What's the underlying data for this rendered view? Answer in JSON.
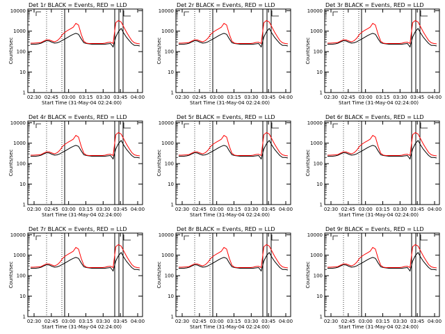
{
  "chart_data": [
    {
      "type": "line",
      "title": "Det 1r  BLACK = Events, RED = LLD",
      "xlabel": "Start Time (31-May-04 02:24:00)",
      "ylabel": "Counts/sec",
      "yscale": "log",
      "ylim": [
        1,
        12000
      ],
      "ytick_labels": [
        "1",
        "10",
        "100",
        "1000",
        "10000"
      ],
      "xtick_labels": [
        "02:30",
        "02:45",
        "03:00",
        "03:15",
        "03:30",
        "03:45",
        "04:00"
      ],
      "series": [
        {
          "name": "Events",
          "color": "#000000",
          "values": [
            230,
            230,
            230,
            240,
            260,
            300,
            340,
            330,
            290,
            260,
            270,
            300,
            360,
            420,
            500,
            600,
            700,
            780,
            700,
            420,
            270,
            250,
            240,
            230,
            230,
            230,
            230,
            230,
            230,
            240,
            250,
            170,
            520,
            960,
            1350,
            800,
            500,
            350,
            250,
            200,
            200,
            190
          ]
        },
        {
          "name": "LLD",
          "color": "#ff0000",
          "values": [
            260,
            260,
            265,
            270,
            280,
            330,
            380,
            370,
            330,
            300,
            340,
            450,
            700,
            900,
            1100,
            1300,
            1550,
            2400,
            2000,
            700,
            320,
            260,
            250,
            250,
            250,
            250,
            250,
            250,
            260,
            280,
            290,
            250,
            2600,
            3300,
            2800,
            1600,
            900,
            550,
            350,
            270,
            250,
            240
          ]
        }
      ]
    },
    {
      "type": "line",
      "title": "Det 2r  BLACK = Events, RED = LLD",
      "xlabel": "Start Time (31-May-04 02:24:00)",
      "ylabel": "Counts/sec",
      "yscale": "log",
      "ylim": [
        1,
        12000
      ],
      "ytick_labels": [
        "1",
        "10",
        "100",
        "1000",
        "10000"
      ],
      "xtick_labels": [
        "02:30",
        "02:45",
        "03:00",
        "03:15",
        "03:30",
        "03:45",
        "04:00"
      ],
      "series": [
        {
          "name": "Events",
          "color": "#000000",
          "values": [
            230,
            230,
            230,
            240,
            260,
            300,
            340,
            330,
            290,
            260,
            270,
            300,
            360,
            420,
            500,
            600,
            700,
            780,
            700,
            420,
            270,
            250,
            240,
            230,
            230,
            230,
            230,
            230,
            230,
            240,
            250,
            170,
            520,
            960,
            1350,
            800,
            500,
            350,
            250,
            200,
            200,
            190
          ]
        },
        {
          "name": "LLD",
          "color": "#ff0000",
          "values": [
            260,
            260,
            265,
            270,
            280,
            330,
            380,
            370,
            330,
            300,
            340,
            450,
            700,
            900,
            1100,
            1300,
            1550,
            2400,
            2000,
            700,
            320,
            260,
            250,
            250,
            250,
            250,
            250,
            250,
            260,
            280,
            290,
            250,
            2600,
            3300,
            2800,
            1600,
            900,
            550,
            350,
            270,
            250,
            240
          ]
        }
      ]
    },
    {
      "type": "line",
      "title": "Det 3r  BLACK = Events, RED = LLD",
      "xlabel": "Start Time (31-May-04 02:24:00)",
      "ylabel": "Counts/sec",
      "yscale": "log",
      "ylim": [
        1,
        12000
      ],
      "ytick_labels": [
        "1",
        "10",
        "100",
        "1000",
        "10000"
      ],
      "xtick_labels": [
        "02:30",
        "02:45",
        "03:00",
        "03:15",
        "03:30",
        "03:45",
        "04:00"
      ],
      "series": [
        {
          "name": "Events",
          "color": "#000000",
          "values": [
            230,
            230,
            230,
            240,
            260,
            300,
            340,
            330,
            290,
            260,
            270,
            300,
            360,
            420,
            500,
            600,
            700,
            780,
            700,
            420,
            270,
            250,
            240,
            230,
            230,
            230,
            230,
            230,
            230,
            240,
            250,
            170,
            520,
            960,
            1350,
            800,
            500,
            350,
            250,
            200,
            200,
            190
          ]
        },
        {
          "name": "LLD",
          "color": "#ff0000",
          "values": [
            260,
            260,
            265,
            270,
            280,
            330,
            380,
            370,
            330,
            300,
            340,
            450,
            700,
            900,
            1100,
            1300,
            1550,
            2400,
            2000,
            700,
            320,
            260,
            250,
            250,
            250,
            250,
            250,
            250,
            260,
            280,
            290,
            250,
            2600,
            3300,
            2800,
            1600,
            900,
            550,
            350,
            270,
            250,
            240
          ]
        }
      ]
    },
    {
      "type": "line",
      "title": "Det 4r  BLACK = Events, RED = LLD",
      "xlabel": "Start Time (31-May-04 02:24:00)",
      "ylabel": "Counts/sec",
      "yscale": "log",
      "ylim": [
        1,
        12000
      ],
      "ytick_labels": [
        "1",
        "10",
        "100",
        "1000",
        "10000"
      ],
      "xtick_labels": [
        "02:30",
        "02:45",
        "03:00",
        "03:15",
        "03:30",
        "03:45",
        "04:00"
      ],
      "series": [
        {
          "name": "Events",
          "color": "#000000",
          "values": [
            230,
            230,
            230,
            240,
            260,
            300,
            340,
            330,
            290,
            260,
            270,
            300,
            360,
            420,
            500,
            600,
            700,
            780,
            700,
            420,
            270,
            250,
            240,
            230,
            230,
            230,
            230,
            230,
            230,
            240,
            250,
            170,
            520,
            960,
            1350,
            800,
            500,
            350,
            250,
            200,
            200,
            190
          ]
        },
        {
          "name": "LLD",
          "color": "#ff0000",
          "values": [
            260,
            260,
            265,
            270,
            280,
            330,
            380,
            370,
            330,
            300,
            340,
            450,
            700,
            900,
            1100,
            1300,
            1550,
            2400,
            2000,
            700,
            320,
            260,
            250,
            250,
            250,
            250,
            250,
            250,
            260,
            280,
            290,
            250,
            2600,
            3300,
            2800,
            1600,
            900,
            550,
            350,
            270,
            250,
            240
          ]
        }
      ]
    },
    {
      "type": "line",
      "title": "Det 5r  BLACK = Events, RED = LLD",
      "xlabel": "Start Time (31-May-04 02:24:00)",
      "ylabel": "Counts/sec",
      "yscale": "log",
      "ylim": [
        1,
        12000
      ],
      "ytick_labels": [
        "1",
        "10",
        "100",
        "1000",
        "10000"
      ],
      "xtick_labels": [
        "02:30",
        "02:45",
        "03:00",
        "03:15",
        "03:30",
        "03:45",
        "04:00"
      ],
      "series": [
        {
          "name": "Events",
          "color": "#000000",
          "values": [
            230,
            230,
            230,
            240,
            260,
            300,
            340,
            330,
            290,
            260,
            270,
            300,
            360,
            420,
            500,
            600,
            700,
            780,
            700,
            420,
            270,
            250,
            240,
            230,
            230,
            230,
            230,
            230,
            230,
            240,
            250,
            170,
            520,
            960,
            1350,
            800,
            500,
            350,
            250,
            200,
            200,
            190
          ]
        },
        {
          "name": "LLD",
          "color": "#ff0000",
          "values": [
            260,
            260,
            265,
            270,
            280,
            330,
            380,
            370,
            330,
            300,
            340,
            450,
            700,
            900,
            1100,
            1300,
            1550,
            2400,
            2000,
            700,
            320,
            260,
            250,
            250,
            250,
            250,
            250,
            250,
            260,
            280,
            290,
            250,
            2600,
            3300,
            2800,
            1600,
            900,
            550,
            350,
            270,
            250,
            240
          ]
        }
      ]
    },
    {
      "type": "line",
      "title": "Det 6r  BLACK = Events, RED = LLD",
      "xlabel": "Start Time (31-May-04 02:24:00)",
      "ylabel": "Counts/sec",
      "yscale": "log",
      "ylim": [
        1,
        12000
      ],
      "ytick_labels": [
        "1",
        "10",
        "100",
        "1000",
        "10000"
      ],
      "xtick_labels": [
        "02:30",
        "02:45",
        "03:00",
        "03:15",
        "03:30",
        "03:45",
        "04:00"
      ],
      "series": [
        {
          "name": "Events",
          "color": "#000000",
          "values": [
            230,
            230,
            230,
            240,
            260,
            300,
            340,
            330,
            290,
            260,
            270,
            300,
            360,
            420,
            500,
            600,
            700,
            780,
            700,
            420,
            270,
            250,
            240,
            230,
            230,
            230,
            230,
            230,
            230,
            240,
            250,
            170,
            520,
            960,
            1350,
            800,
            500,
            350,
            250,
            200,
            200,
            190
          ]
        },
        {
          "name": "LLD",
          "color": "#ff0000",
          "values": [
            260,
            260,
            265,
            270,
            280,
            330,
            380,
            370,
            330,
            300,
            340,
            450,
            700,
            900,
            1100,
            1300,
            1550,
            2400,
            2000,
            700,
            320,
            260,
            250,
            250,
            250,
            250,
            250,
            250,
            260,
            280,
            290,
            250,
            2600,
            3300,
            2800,
            1600,
            900,
            550,
            350,
            270,
            250,
            240
          ]
        }
      ]
    },
    {
      "type": "line",
      "title": "Det 7r  BLACK = Events, RED = LLD",
      "xlabel": "Start Time (31-May-04 02:24:00)",
      "ylabel": "Counts/sec",
      "yscale": "log",
      "ylim": [
        1,
        12000
      ],
      "ytick_labels": [
        "1",
        "10",
        "100",
        "1000",
        "10000"
      ],
      "xtick_labels": [
        "02:30",
        "02:45",
        "03:00",
        "03:15",
        "03:30",
        "03:45",
        "04:00"
      ],
      "series": [
        {
          "name": "Events",
          "color": "#000000",
          "values": [
            230,
            230,
            230,
            240,
            260,
            300,
            340,
            330,
            290,
            260,
            270,
            300,
            360,
            420,
            500,
            600,
            700,
            780,
            700,
            420,
            270,
            250,
            240,
            230,
            230,
            230,
            230,
            230,
            230,
            240,
            250,
            170,
            520,
            960,
            1350,
            800,
            500,
            350,
            250,
            200,
            200,
            190
          ]
        },
        {
          "name": "LLD",
          "color": "#ff0000",
          "values": [
            260,
            260,
            265,
            270,
            280,
            330,
            380,
            370,
            330,
            300,
            340,
            450,
            700,
            900,
            1100,
            1300,
            1550,
            2400,
            2000,
            700,
            320,
            260,
            250,
            250,
            250,
            250,
            250,
            250,
            260,
            280,
            290,
            250,
            2600,
            3300,
            2800,
            1600,
            900,
            550,
            350,
            270,
            250,
            240
          ]
        }
      ]
    },
    {
      "type": "line",
      "title": "Det 8r  BLACK = Events, RED = LLD",
      "xlabel": "Start Time (31-May-04 02:24:00)",
      "ylabel": "Counts/sec",
      "yscale": "log",
      "ylim": [
        1,
        12000
      ],
      "ytick_labels": [
        "1",
        "10",
        "100",
        "1000",
        "10000"
      ],
      "xtick_labels": [
        "02:30",
        "02:45",
        "03:00",
        "03:15",
        "03:30",
        "03:45",
        "04:00"
      ],
      "series": [
        {
          "name": "Events",
          "color": "#000000",
          "values": [
            230,
            230,
            230,
            240,
            260,
            300,
            340,
            330,
            290,
            260,
            270,
            300,
            360,
            420,
            500,
            600,
            700,
            780,
            700,
            420,
            270,
            250,
            240,
            230,
            230,
            230,
            230,
            230,
            230,
            240,
            250,
            170,
            520,
            960,
            1350,
            800,
            500,
            350,
            250,
            200,
            200,
            190
          ]
        },
        {
          "name": "LLD",
          "color": "#ff0000",
          "values": [
            260,
            260,
            265,
            270,
            280,
            330,
            380,
            370,
            330,
            300,
            340,
            450,
            700,
            900,
            1100,
            1300,
            1550,
            2400,
            2000,
            700,
            320,
            260,
            250,
            250,
            250,
            250,
            250,
            250,
            260,
            280,
            290,
            250,
            2600,
            3300,
            2800,
            1600,
            900,
            550,
            350,
            270,
            250,
            240
          ]
        }
      ]
    },
    {
      "type": "line",
      "title": "Det 9r  BLACK = Events, RED = LLD",
      "xlabel": "Start Time (31-May-04 02:24:00)",
      "ylabel": "Counts/sec",
      "yscale": "log",
      "ylim": [
        1,
        12000
      ],
      "ytick_labels": [
        "1",
        "10",
        "100",
        "1000",
        "10000"
      ],
      "xtick_labels": [
        "02:30",
        "02:45",
        "03:00",
        "03:15",
        "03:30",
        "03:45",
        "04:00"
      ],
      "series": [
        {
          "name": "Events",
          "color": "#000000",
          "values": [
            230,
            230,
            230,
            240,
            260,
            300,
            340,
            330,
            290,
            260,
            270,
            300,
            360,
            420,
            500,
            600,
            700,
            780,
            700,
            420,
            270,
            250,
            240,
            230,
            230,
            230,
            230,
            230,
            230,
            240,
            250,
            170,
            520,
            960,
            1350,
            800,
            500,
            350,
            250,
            200,
            200,
            190
          ]
        },
        {
          "name": "LLD",
          "color": "#ff0000",
          "values": [
            260,
            260,
            265,
            270,
            280,
            330,
            380,
            370,
            330,
            300,
            340,
            450,
            700,
            900,
            1100,
            1300,
            1550,
            2400,
            2000,
            700,
            320,
            260,
            250,
            250,
            250,
            250,
            250,
            250,
            260,
            280,
            290,
            250,
            2600,
            3300,
            2800,
            1600,
            900,
            550,
            350,
            270,
            250,
            240
          ]
        }
      ]
    }
  ]
}
